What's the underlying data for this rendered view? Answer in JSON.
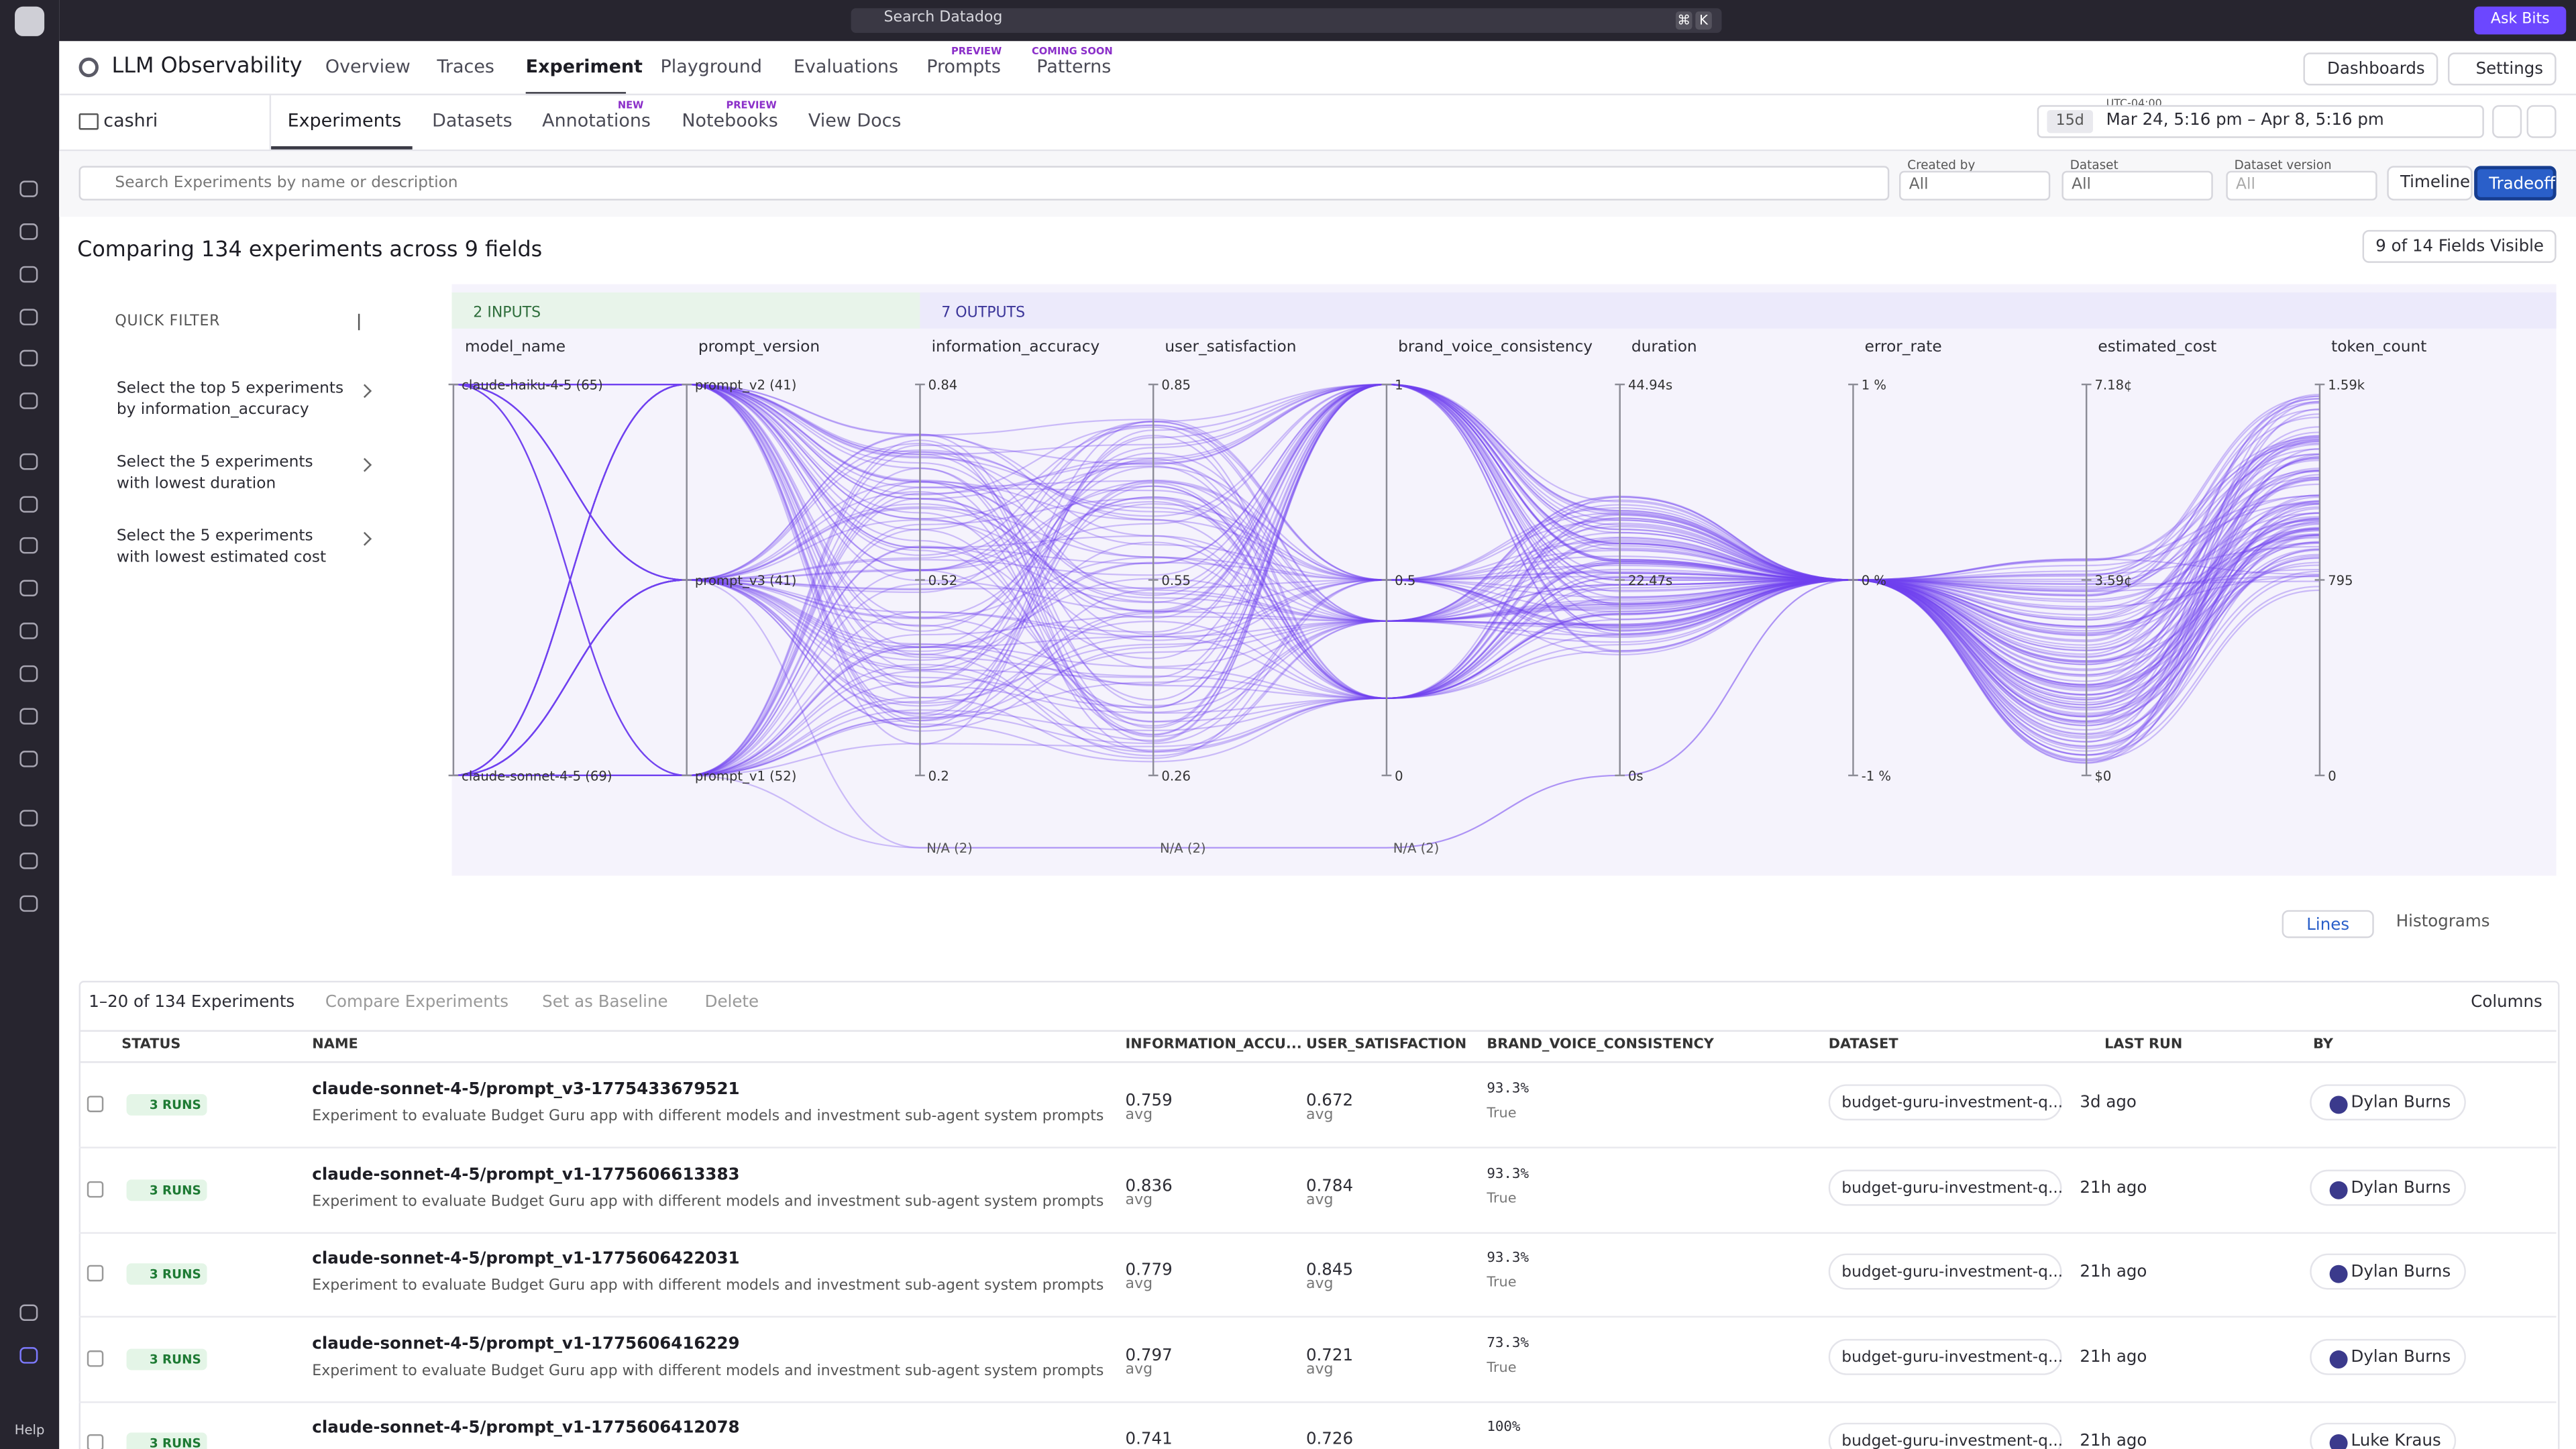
{
  "topbar": {
    "search": "Search Datadog",
    "shortcut": [
      "⌘",
      "K"
    ],
    "ask": "Ask Bits"
  },
  "header": {
    "title": "LLM Observability",
    "tabs": [
      {
        "label": "Overview"
      },
      {
        "label": "Traces"
      },
      {
        "label": "Experiment"
      },
      {
        "label": "Playground"
      },
      {
        "label": "Evaluations"
      },
      {
        "label": "Prompts",
        "badge": "PREVIEW"
      },
      {
        "label": "Patterns",
        "badge": "COMING SOON"
      }
    ],
    "buttons": [
      "Dashboards",
      "Settings"
    ]
  },
  "subnav": {
    "project": "cashri",
    "tabs": [
      {
        "label": "Experiments"
      },
      {
        "label": "Datasets"
      },
      {
        "label": "Annotations",
        "badge": "NEW"
      },
      {
        "label": "Notebooks",
        "badge": "PREVIEW"
      },
      {
        "label": "View Docs"
      }
    ],
    "range": "15d",
    "timezone": "UTC-04:00",
    "time": "Mar 24, 5:16 pm – Apr 8, 5:16 pm"
  },
  "filters": {
    "search": "Search Experiments by name or description",
    "selects": [
      {
        "label": "Created by",
        "value": "All"
      },
      {
        "label": "Dataset",
        "value": "All"
      },
      {
        "label": "Dataset version",
        "value": "All"
      }
    ],
    "views": [
      "Timeline",
      "Tradeoff"
    ]
  },
  "comparison": {
    "heading": "Comparing 134 experiments across 9 fields",
    "fields": "9 of 14 Fields Visible"
  },
  "quick_filter": {
    "title": "QUICK FILTER",
    "items": [
      "Select the top 5 experiments by information_accuracy",
      "Select the 5 experiments with lowest duration",
      "Select the 5 experiments with lowest estimated cost"
    ]
  },
  "plot": {
    "inputs": "2 INPUTS",
    "outputs": "7 OUTPUTS",
    "axes": [
      {
        "name": "model_name",
        "ticks": [
          "claude-haiku-4-5 (65)",
          "claude-sonnet-4-5 (69)"
        ]
      },
      {
        "name": "prompt_version",
        "ticks": [
          "prompt_v2 (41)",
          "prompt_v3 (41)",
          "prompt_v1 (52)"
        ]
      },
      {
        "name": "information_accuracy",
        "ticks": [
          "0.84",
          "0.52",
          "0.2"
        ],
        "na": "N/A (2)"
      },
      {
        "name": "user_satisfaction",
        "ticks": [
          "0.85",
          "0.55",
          "0.26"
        ],
        "na": "N/A (2)"
      },
      {
        "name": "brand_voice_consistency",
        "ticks": [
          "1",
          "0.5",
          "0"
        ],
        "na": "N/A (2)"
      },
      {
        "name": "duration",
        "ticks": [
          "44.94s",
          "22.47s",
          "0s"
        ]
      },
      {
        "name": "error_rate",
        "ticks": [
          "1 %",
          "0 %",
          "-1 %"
        ]
      },
      {
        "name": "estimated_cost",
        "ticks": [
          "7.18¢",
          "3.59¢",
          "$0"
        ]
      },
      {
        "name": "token_count",
        "ticks": [
          "1.59k",
          "795",
          "0"
        ]
      }
    ],
    "modes": [
      "Lines",
      "Histograms"
    ]
  },
  "table": {
    "summary": "1–20 of 134 Experiments",
    "actions": [
      "Compare Experiments",
      "Set as Baseline",
      "Delete"
    ],
    "columns_button": "Columns",
    "columns": [
      "STATUS",
      "NAME",
      "INFORMATION_ACCU...",
      "USER_SATISFACTION",
      "BRAND_VOICE_CONSISTENCY",
      "DATASET",
      "LAST RUN",
      "BY"
    ],
    "rows": [
      {
        "status": "3 RUNS",
        "name": "claude-sonnet-4-5/prompt_v3-1775433679521",
        "desc": "Experiment to evaluate Budget Guru app with different models and investment sub-agent system prompts",
        "ia": "0.759",
        "ia_sub": "avg",
        "us": "0.672",
        "us_sub": "avg",
        "bvc": "93.3%",
        "bvc_sub": "True",
        "dataset": "budget-guru-investment-q...",
        "last": "3d ago",
        "by": "Dylan Burns"
      },
      {
        "status": "3 RUNS",
        "name": "claude-sonnet-4-5/prompt_v1-1775606613383",
        "desc": "Experiment to evaluate Budget Guru app with different models and investment sub-agent system prompts",
        "ia": "0.836",
        "ia_sub": "avg",
        "us": "0.784",
        "us_sub": "avg",
        "bvc": "93.3%",
        "bvc_sub": "True",
        "dataset": "budget-guru-investment-q...",
        "last": "21h ago",
        "by": "Dylan Burns"
      },
      {
        "status": "3 RUNS",
        "name": "claude-sonnet-4-5/prompt_v1-1775606422031",
        "desc": "Experiment to evaluate Budget Guru app with different models and investment sub-agent system prompts",
        "ia": "0.779",
        "ia_sub": "avg",
        "us": "0.845",
        "us_sub": "avg",
        "bvc": "93.3%",
        "bvc_sub": "True",
        "dataset": "budget-guru-investment-q...",
        "last": "21h ago",
        "by": "Dylan Burns"
      },
      {
        "status": "3 RUNS",
        "name": "claude-sonnet-4-5/prompt_v1-1775606416229",
        "desc": "Experiment to evaluate Budget Guru app with different models and investment sub-agent system prompts",
        "ia": "0.797",
        "ia_sub": "avg",
        "us": "0.721",
        "us_sub": "avg",
        "bvc": "73.3%",
        "bvc_sub": "True",
        "dataset": "budget-guru-investment-q...",
        "last": "21h ago",
        "by": "Dylan Burns"
      },
      {
        "status": "3 RUNS",
        "name": "claude-sonnet-4-5/prompt_v1-1775606412078",
        "ia": "0.741",
        "us": "0.726",
        "bvc": "100%",
        "dataset": "budget-guru-investment-q...",
        "last": "21h ago",
        "by": "Luke Kraus"
      }
    ]
  },
  "sidebar": {
    "help": "Help"
  }
}
